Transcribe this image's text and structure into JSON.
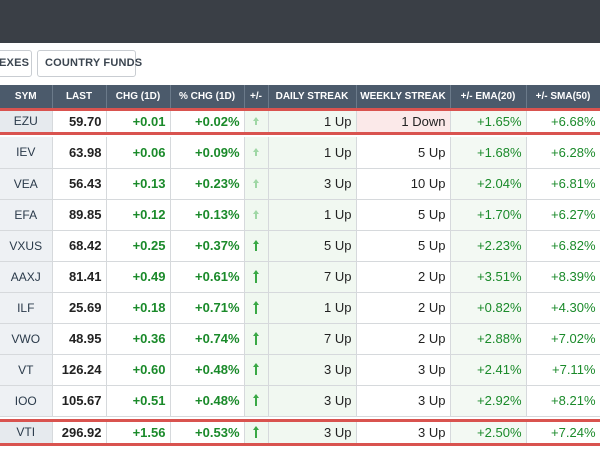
{
  "tabs": [
    "EXES",
    "COUNTRY FUNDS"
  ],
  "columns": [
    "SYM",
    "LAST",
    "CHG (1D)",
    "% CHG (1D)",
    "+/-",
    "DAILY STREAK",
    "WEEKLY STREAK",
    "+/- EMA(20)",
    "+/- SMA(50)"
  ],
  "top_row": {
    "sym": "EZU",
    "last": "59.70",
    "chg": "+0.01",
    "pct": "+0.02%",
    "daily": "1 Up",
    "weekly": "1 Down",
    "ema": "+1.65%",
    "sma": "+6.68%",
    "arrow_level": 0.2
  },
  "rows": [
    {
      "sym": "IEV",
      "last": "63.98",
      "chg": "+0.06",
      "pct": "+0.09%",
      "daily": "1 Up",
      "weekly": "5 Up",
      "ema": "+1.68%",
      "sma": "+6.28%",
      "arrow_level": 0.2
    },
    {
      "sym": "VEA",
      "last": "56.43",
      "chg": "+0.13",
      "pct": "+0.23%",
      "daily": "3 Up",
      "weekly": "10 Up",
      "ema": "+2.04%",
      "sma": "+6.81%",
      "arrow_level": 0.35
    },
    {
      "sym": "EFA",
      "last": "89.85",
      "chg": "+0.12",
      "pct": "+0.13%",
      "daily": "1 Up",
      "weekly": "5 Up",
      "ema": "+1.70%",
      "sma": "+6.27%",
      "arrow_level": 0.25
    },
    {
      "sym": "VXUS",
      "last": "68.42",
      "chg": "+0.25",
      "pct": "+0.37%",
      "daily": "5 Up",
      "weekly": "5 Up",
      "ema": "+2.23%",
      "sma": "+6.82%",
      "arrow_level": 0.5
    },
    {
      "sym": "AAXJ",
      "last": "81.41",
      "chg": "+0.49",
      "pct": "+0.61%",
      "daily": "7 Up",
      "weekly": "2 Up",
      "ema": "+3.51%",
      "sma": "+8.39%",
      "arrow_level": 0.8
    },
    {
      "sym": "ILF",
      "last": "25.69",
      "chg": "+0.18",
      "pct": "+0.71%",
      "daily": "1 Up",
      "weekly": "2 Up",
      "ema": "+0.82%",
      "sma": "+4.30%",
      "arrow_level": 0.9
    },
    {
      "sym": "VWO",
      "last": "48.95",
      "chg": "+0.36",
      "pct": "+0.74%",
      "daily": "7 Up",
      "weekly": "2 Up",
      "ema": "+2.88%",
      "sma": "+7.02%",
      "arrow_level": 0.9
    },
    {
      "sym": "VT",
      "last": "126.24",
      "chg": "+0.60",
      "pct": "+0.48%",
      "daily": "3 Up",
      "weekly": "3 Up",
      "ema": "+2.41%",
      "sma": "+7.11%",
      "arrow_level": 0.65
    },
    {
      "sym": "IOO",
      "last": "105.67",
      "chg": "+0.51",
      "pct": "+0.48%",
      "daily": "3 Up",
      "weekly": "3 Up",
      "ema": "+2.92%",
      "sma": "+8.21%",
      "arrow_level": 0.65
    }
  ],
  "bottom_row": {
    "sym": "VTI",
    "last": "296.92",
    "chg": "+1.56",
    "pct": "+0.53%",
    "daily": "3 Up",
    "weekly": "3 Up",
    "ema": "+2.50%",
    "sma": "+7.24%",
    "arrow_level": 0.7
  },
  "colors": {
    "header_bg": "#4b5a6b",
    "positive": "#1a8a2a",
    "highlight_border": "#d9534f",
    "down_bg": "#fbe9e9"
  }
}
